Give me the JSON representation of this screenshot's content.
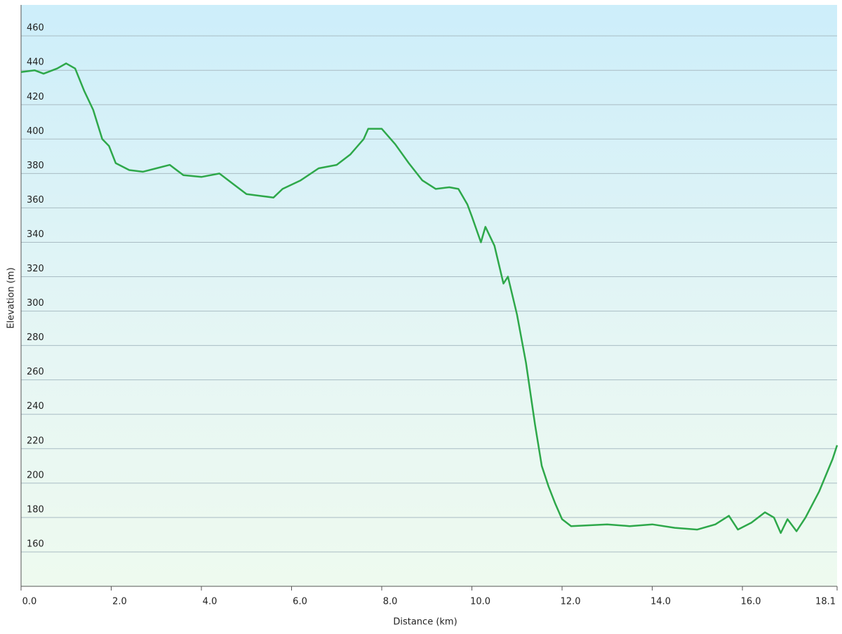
{
  "chart_data": {
    "type": "line",
    "x_label": "Distance  (km)",
    "y_label": "Elevation (m)",
    "x": [
      0,
      0.3,
      0.5,
      0.8,
      1.0,
      1.2,
      1.4,
      1.6,
      1.8,
      1.95,
      2.1,
      2.4,
      2.7,
      3.0,
      3.3,
      3.6,
      4.0,
      4.4,
      4.7,
      5.0,
      5.3,
      5.6,
      5.8,
      6.2,
      6.6,
      7.0,
      7.3,
      7.6,
      7.7,
      8.0,
      8.3,
      8.6,
      8.9,
      9.2,
      9.5,
      9.7,
      9.9,
      10.0,
      10.2,
      10.3,
      10.5,
      10.7,
      10.8,
      11.0,
      11.2,
      11.4,
      11.55,
      11.7,
      11.85,
      12.0,
      12.2,
      13.0,
      13.5,
      14.0,
      14.5,
      15.0,
      15.4,
      15.7,
      15.9,
      16.2,
      16.5,
      16.7,
      16.85,
      17.0,
      17.2,
      17.4,
      17.7,
      18.0,
      18.1
    ],
    "values": [
      439,
      440,
      438,
      441,
      444,
      441,
      428,
      417,
      400,
      396,
      386,
      382,
      381,
      383,
      385,
      379,
      378,
      380,
      374,
      368,
      367,
      366,
      371,
      376,
      383,
      385,
      391,
      400,
      406,
      406,
      397,
      386,
      376,
      371,
      372,
      371,
      362,
      355,
      340,
      349,
      338,
      316,
      320,
      298,
      270,
      234,
      210,
      198,
      188,
      179,
      175,
      176,
      175,
      176,
      174,
      173,
      176,
      181,
      173,
      177,
      183,
      180,
      171,
      179,
      172,
      180,
      195,
      214,
      222
    ],
    "color": "#2ea84a",
    "xlim": [
      0,
      18.1
    ],
    "ylim": [
      140,
      478
    ],
    "xticks": [
      {
        "value": 0,
        "label": "0.0"
      },
      {
        "value": 2,
        "label": "2.0"
      },
      {
        "value": 4,
        "label": "4.0"
      },
      {
        "value": 6,
        "label": "6.0"
      },
      {
        "value": 8,
        "label": "8.0"
      },
      {
        "value": 10,
        "label": "10.0"
      },
      {
        "value": 12,
        "label": "12.0"
      },
      {
        "value": 14,
        "label": "14.0"
      },
      {
        "value": 16,
        "label": "16.0"
      },
      {
        "value": 18.1,
        "label": "18.1"
      }
    ],
    "yticks": [
      160,
      180,
      200,
      220,
      240,
      260,
      280,
      300,
      320,
      340,
      360,
      380,
      400,
      420,
      440,
      460
    ],
    "grid": true
  }
}
